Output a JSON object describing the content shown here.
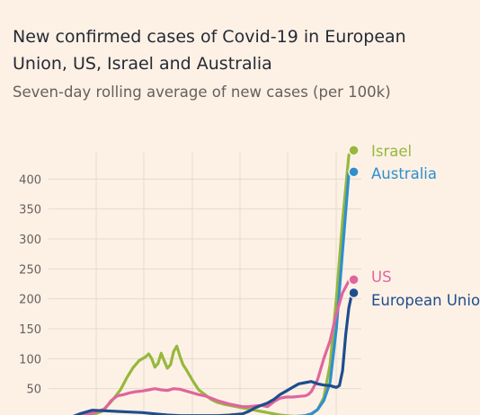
{
  "title": "New confirmed cases of Covid-19 in European Union, US, Israel and Australia",
  "subtitle": "Seven-day rolling average of new cases (per 100k)",
  "chart_data": {
    "type": "line",
    "title": "New confirmed cases of Covid-19 in European Union, US, Israel and Australia",
    "subtitle": "Seven-day rolling average of new cases (per 100k)",
    "xlabel": "",
    "ylabel": "",
    "ylim": [
      0,
      450
    ],
    "xlim": [
      0,
      100
    ],
    "yticks": [
      50,
      100,
      150,
      200,
      250,
      300,
      350,
      400
    ],
    "grid": true,
    "legend": "direct labels at line ends, right",
    "series": [
      {
        "name": "Israel",
        "color": "#96b83c",
        "points": [
          [
            6,
            0
          ],
          [
            10,
            3
          ],
          [
            14,
            6
          ],
          [
            17,
            12
          ],
          [
            20,
            28
          ],
          [
            23,
            48
          ],
          [
            25,
            68
          ],
          [
            27,
            85
          ],
          [
            29,
            97
          ],
          [
            31,
            103
          ],
          [
            32,
            108
          ],
          [
            33,
            100
          ],
          [
            34,
            86
          ],
          [
            35,
            92
          ],
          [
            36,
            109
          ],
          [
            37,
            96
          ],
          [
            38,
            84
          ],
          [
            39,
            90
          ],
          [
            40,
            112
          ],
          [
            41,
            121
          ],
          [
            42,
            104
          ],
          [
            43,
            90
          ],
          [
            44,
            82
          ],
          [
            46,
            64
          ],
          [
            48,
            48
          ],
          [
            50,
            40
          ],
          [
            52,
            32
          ],
          [
            54,
            27
          ],
          [
            56,
            24
          ],
          [
            58,
            22
          ],
          [
            60,
            20
          ],
          [
            62,
            18
          ],
          [
            64,
            16
          ],
          [
            66,
            14
          ],
          [
            68,
            12
          ],
          [
            70,
            10
          ],
          [
            72,
            8
          ],
          [
            74,
            6
          ],
          [
            76,
            5
          ],
          [
            78,
            4
          ],
          [
            80,
            4
          ],
          [
            82,
            5
          ],
          [
            84,
            7
          ],
          [
            86,
            15
          ],
          [
            88,
            35
          ],
          [
            90,
            90
          ],
          [
            92,
            200
          ],
          [
            94,
            330
          ],
          [
            96,
            440
          ],
          [
            97,
            448
          ]
        ]
      },
      {
        "name": "Australia",
        "color": "#2f8fce",
        "points": [
          [
            10,
            0
          ],
          [
            20,
            1
          ],
          [
            30,
            2
          ],
          [
            40,
            2
          ],
          [
            50,
            2
          ],
          [
            60,
            2
          ],
          [
            70,
            3
          ],
          [
            78,
            3
          ],
          [
            82,
            5
          ],
          [
            84,
            8
          ],
          [
            86,
            15
          ],
          [
            88,
            30
          ],
          [
            90,
            60
          ],
          [
            92,
            150
          ],
          [
            94,
            280
          ],
          [
            96,
            410
          ],
          [
            97,
            412
          ]
        ]
      },
      {
        "name": "US",
        "color": "#e0659c",
        "points": [
          [
            4,
            0
          ],
          [
            10,
            4
          ],
          [
            14,
            9
          ],
          [
            18,
            16
          ],
          [
            20,
            30
          ],
          [
            22,
            38
          ],
          [
            24,
            40
          ],
          [
            26,
            43
          ],
          [
            28,
            45
          ],
          [
            30,
            46
          ],
          [
            32,
            48
          ],
          [
            34,
            50
          ],
          [
            36,
            48
          ],
          [
            38,
            47
          ],
          [
            40,
            50
          ],
          [
            42,
            49
          ],
          [
            44,
            46
          ],
          [
            46,
            43
          ],
          [
            48,
            40
          ],
          [
            50,
            38
          ],
          [
            52,
            34
          ],
          [
            54,
            30
          ],
          [
            56,
            27
          ],
          [
            58,
            24
          ],
          [
            60,
            22
          ],
          [
            62,
            20
          ],
          [
            64,
            20
          ],
          [
            66,
            21
          ],
          [
            68,
            22
          ],
          [
            70,
            20
          ],
          [
            72,
            28
          ],
          [
            74,
            34
          ],
          [
            76,
            36
          ],
          [
            78,
            36
          ],
          [
            80,
            37
          ],
          [
            82,
            38
          ],
          [
            83,
            40
          ],
          [
            84,
            45
          ],
          [
            86,
            65
          ],
          [
            88,
            100
          ],
          [
            90,
            130
          ],
          [
            92,
            175
          ],
          [
            94,
            210
          ],
          [
            96,
            230
          ],
          [
            97,
            232
          ]
        ]
      },
      {
        "name": "European Union",
        "color": "#1e4d8c",
        "points": [
          [
            6,
            0
          ],
          [
            10,
            8
          ],
          [
            14,
            14
          ],
          [
            18,
            13
          ],
          [
            22,
            12
          ],
          [
            26,
            11
          ],
          [
            30,
            10
          ],
          [
            34,
            8
          ],
          [
            38,
            6
          ],
          [
            42,
            5
          ],
          [
            46,
            5
          ],
          [
            50,
            5
          ],
          [
            54,
            5
          ],
          [
            58,
            6
          ],
          [
            62,
            8
          ],
          [
            64,
            12
          ],
          [
            66,
            18
          ],
          [
            68,
            22
          ],
          [
            70,
            26
          ],
          [
            72,
            32
          ],
          [
            74,
            40
          ],
          [
            76,
            46
          ],
          [
            78,
            52
          ],
          [
            80,
            58
          ],
          [
            82,
            60
          ],
          [
            84,
            62
          ],
          [
            86,
            58
          ],
          [
            88,
            56
          ],
          [
            90,
            55
          ],
          [
            92,
            52
          ],
          [
            93,
            55
          ],
          [
            94,
            80
          ],
          [
            95,
            140
          ],
          [
            96,
            185
          ],
          [
            97,
            210
          ]
        ]
      }
    ]
  }
}
